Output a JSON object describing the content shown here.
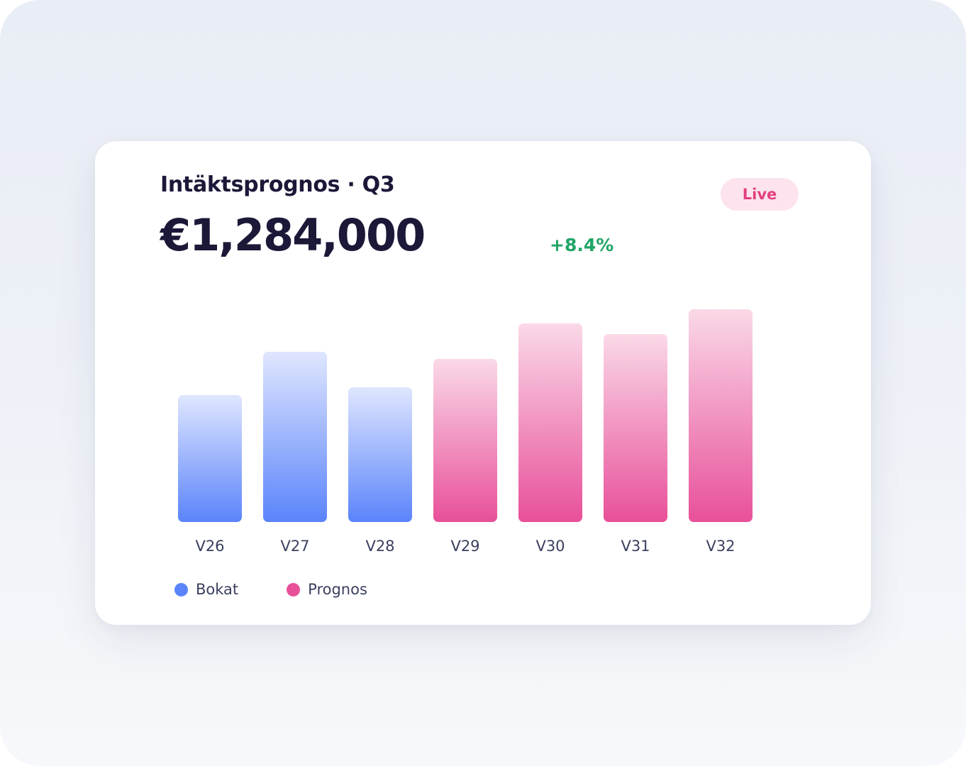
{
  "card": {
    "title": "Intäktsprognos · Q3",
    "amount": "€1,284,000",
    "change": "+8.4%",
    "badge": "Live"
  },
  "legend": {
    "items": [
      {
        "label": "Bokat",
        "color": "#5b84fb"
      },
      {
        "label": "Prognos",
        "color": "#e8509a"
      }
    ]
  },
  "chart_data": {
    "type": "bar",
    "categories": [
      "V26",
      "V27",
      "V28",
      "V29",
      "V30",
      "V31",
      "V32"
    ],
    "series": [
      {
        "name": "Bokat",
        "values": [
          179,
          240,
          190,
          null,
          null,
          null,
          null
        ]
      },
      {
        "name": "Prognos",
        "values": [
          null,
          null,
          null,
          230,
          280,
          265,
          300
        ]
      }
    ],
    "ylim": [
      0,
      300
    ],
    "grid": false,
    "legend_position": "bottom-left",
    "colors": {
      "Bokat": {
        "top": "#dfe6fe",
        "bottom": "#5b84fb"
      },
      "Prognos": {
        "top": "#fad9e8",
        "bottom": "#e8509a"
      }
    }
  }
}
